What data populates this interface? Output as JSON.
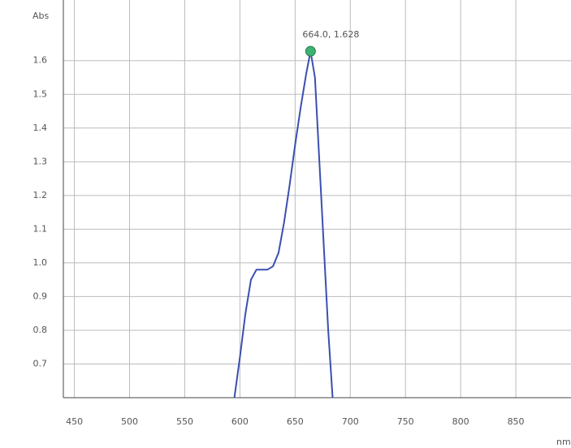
{
  "chart_data": {
    "type": "line",
    "y_label": "Abs",
    "x_label": "nm",
    "x": [
      595,
      600,
      605,
      610,
      615,
      620,
      625,
      630,
      635,
      640,
      645,
      650,
      655,
      660,
      664,
      668,
      672,
      676,
      680,
      684
    ],
    "series": [
      {
        "color": "#3a4fb0",
        "values": [
          0.6,
          0.72,
          0.85,
          0.95,
          0.98,
          0.98,
          0.98,
          0.99,
          1.03,
          1.12,
          1.23,
          1.35,
          1.46,
          1.56,
          1.628,
          1.55,
          1.3,
          1.05,
          0.8,
          0.6
        ]
      }
    ],
    "annotation": {
      "text": "664.0, 1.628",
      "x": 664.0,
      "y": 1.628,
      "color": "#3cb371"
    },
    "xlim": [
      440,
      900
    ],
    "ylim": [
      0.6,
      1.78
    ],
    "xticks": [
      450,
      500,
      550,
      600,
      650,
      700,
      750,
      800,
      850
    ],
    "yticks": [
      0.7,
      0.8,
      0.9,
      {
        "value": 1,
        "label": "1.0"
      },
      1.1,
      1.2,
      1.3,
      1.4,
      1.5,
      1.6
    ],
    "grid": true
  }
}
